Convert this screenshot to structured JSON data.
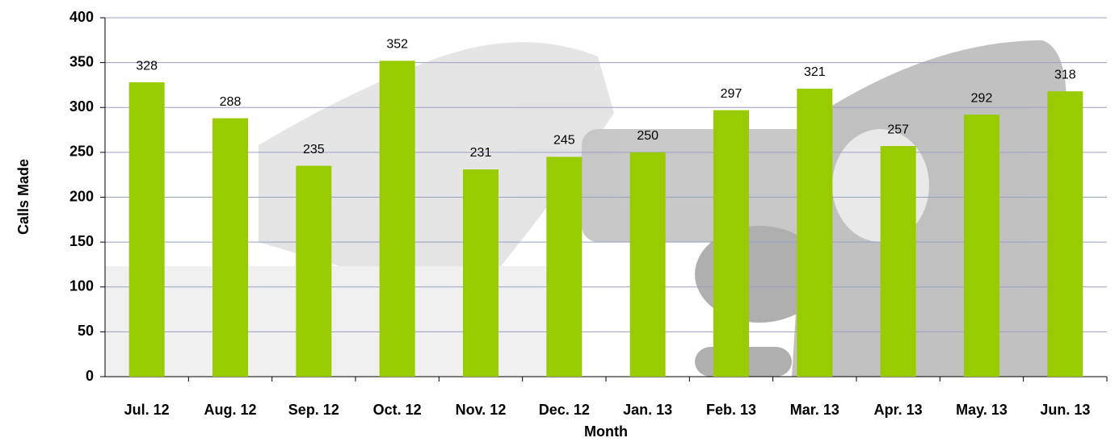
{
  "chart_data": {
    "type": "bar",
    "x_label": "Month",
    "y_label": "Calls Made",
    "categories": [
      "Jul. 12",
      "Aug. 12",
      "Sep. 12",
      "Oct. 12",
      "Nov. 12",
      "Dec. 12",
      "Jan. 13",
      "Feb. 13",
      "Mar. 13",
      "Apr. 13",
      "May. 13",
      "Jun. 13"
    ],
    "values": [
      328,
      288,
      235,
      352,
      231,
      245,
      250,
      297,
      321,
      257,
      292,
      318
    ],
    "color": "#99cc00",
    "ylim": [
      0,
      400
    ],
    "yticks": [
      0,
      50,
      100,
      150,
      200,
      250,
      300,
      350,
      400
    ],
    "grid": true
  }
}
